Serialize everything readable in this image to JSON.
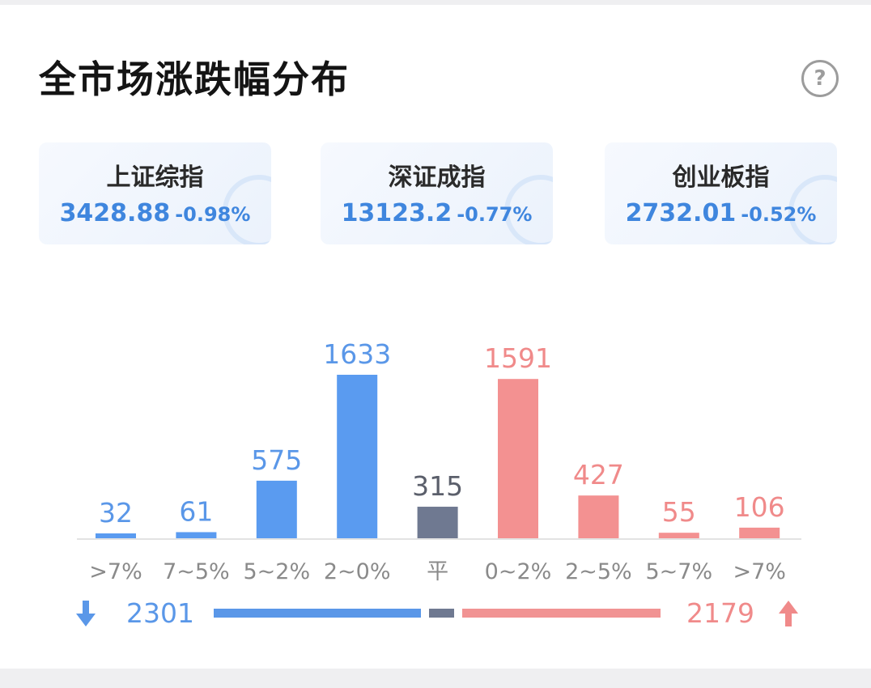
{
  "header": {
    "title": "全市场涨跌幅分布",
    "help_icon": "question-circle-icon",
    "help_glyph": "?"
  },
  "indices": [
    {
      "name": "上证综指",
      "value": "3428.88",
      "change": "-0.98%"
    },
    {
      "name": "深证成指",
      "value": "13123.2",
      "change": "-0.77%"
    },
    {
      "name": "创业板指",
      "value": "2732.01",
      "change": "-0.52%"
    }
  ],
  "colors": {
    "down": "#5a9bf0",
    "flat": "#6f7991",
    "up": "#f39191",
    "index_text": "#3f86de"
  },
  "chart_data": {
    "type": "bar",
    "categories": [
      ">7%",
      "7~5%",
      "5~2%",
      "2~0%",
      "平",
      "0~2%",
      "2~5%",
      "5~7%",
      ">7%"
    ],
    "values": [
      32,
      61,
      575,
      1633,
      315,
      1591,
      427,
      55,
      106
    ],
    "groups": [
      "down",
      "down",
      "down",
      "down",
      "flat",
      "up",
      "up",
      "up",
      "up"
    ],
    "title": "全市场涨跌幅分布",
    "xlabel": "",
    "ylabel": "",
    "ylim": [
      0,
      1633
    ],
    "grid": false,
    "legend": "none"
  },
  "summary": {
    "down_count": "2301",
    "up_count": "2179",
    "down_icon": "arrow-down-icon",
    "up_icon": "arrow-up-icon"
  }
}
